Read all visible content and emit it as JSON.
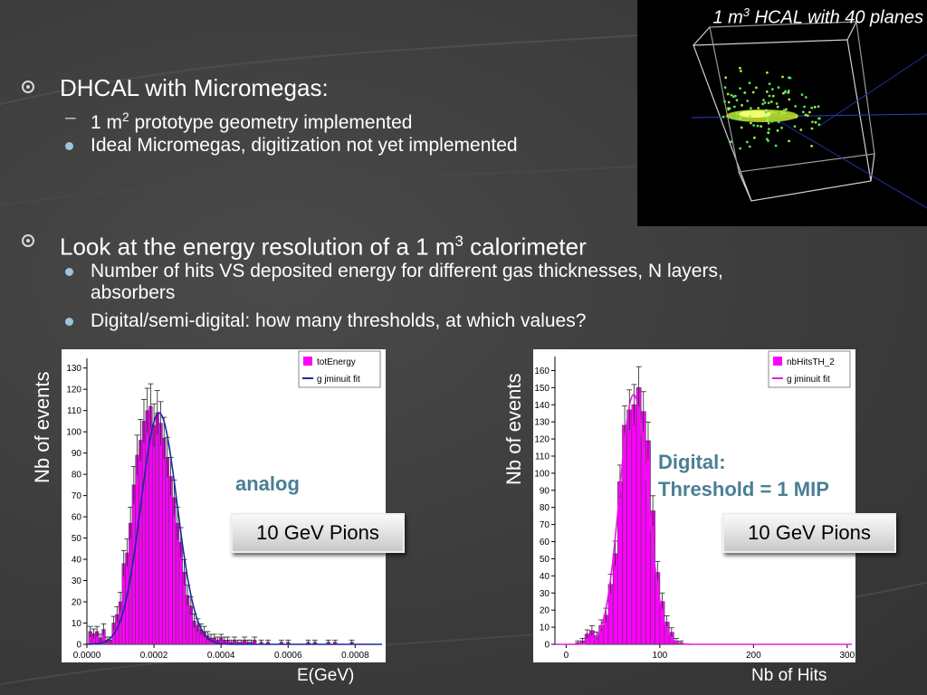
{
  "bullets": [
    {
      "text": "DHCAL with Micromegas:",
      "subs": [
        {
          "marker": "dash",
          "text_pre": "1 m",
          "sup": "2",
          "text_post": " prototype geometry implemented"
        },
        {
          "marker": "dot",
          "text": "Ideal Micromegas, digitization not yet implemented"
        }
      ]
    },
    {
      "text_pre": "Look at the energy resolution of a 1 m",
      "sup": "3",
      "text_post": " calorimeter",
      "subs": [
        {
          "marker": "dot",
          "line1": "Number of hits VS deposited energy for different gas thicknesses, N layers,",
          "line2": "absorbers"
        },
        {
          "marker": "dot",
          "text": "Digital/semi-digital: how many thresholds, at which values?"
        }
      ]
    }
  ],
  "hcal_image": {
    "title_pre": "1 m",
    "title_sup": "3",
    "title_post": " HCAL with 40 planes"
  },
  "colors": {
    "histogram": "#ff00ff",
    "fit_analog": "#1a2a9c",
    "fit_digital": "#e020e0",
    "callout": "#4a7f94",
    "background": "#3c3c3c"
  },
  "callouts": {
    "analog": "analog",
    "digital_line1": "Digital:",
    "digital_line2": "Threshold = 1 MIP",
    "pions_left": "10 GeV Pions",
    "pions_right": "10 GeV Pions"
  },
  "chart_data": [
    {
      "type": "bar",
      "ylabel": "Nb of events",
      "xlabel": "E(GeV)",
      "xlim": [
        0.0,
        0.00088
      ],
      "ylim": [
        0,
        132
      ],
      "xticks": [
        0.0,
        0.0002,
        0.0004,
        0.0006,
        0.0008
      ],
      "xtick_labels": [
        "0.0000",
        "0.0002",
        "0.0004",
        "0.0006",
        "0.0008"
      ],
      "yticks": [
        0,
        10,
        20,
        30,
        40,
        50,
        60,
        70,
        80,
        90,
        100,
        110,
        120,
        130
      ],
      "bin_width": 1e-05,
      "x": [
        1e-05,
        2e-05,
        3e-05,
        4e-05,
        5e-05,
        6e-05,
        7e-05,
        8e-05,
        9e-05,
        0.0001,
        0.00011,
        0.00012,
        0.00013,
        0.00014,
        0.00015,
        0.00016,
        0.00017,
        0.00018,
        0.00019,
        0.0002,
        0.00021,
        0.00022,
        0.00023,
        0.00024,
        0.00025,
        0.00026,
        0.00027,
        0.00028,
        0.00029,
        0.0003,
        0.00031,
        0.00032,
        0.00033,
        0.00034,
        0.00035,
        0.00036,
        0.00037,
        0.00038,
        0.00039,
        0.0004,
        0.00041,
        0.00042,
        0.00043,
        0.00044,
        0.00045,
        0.00046,
        0.00047,
        0.00048,
        0.00049,
        0.0005,
        0.00052,
        0.00054,
        0.00058,
        0.0006,
        0.00066,
        0.00068,
        0.00072,
        0.00074,
        0.00079
      ],
      "series": [
        {
          "name": "totEnergy",
          "values": [
            6,
            5,
            6,
            3,
            7,
            2,
            2,
            10,
            14,
            20,
            38,
            43,
            57,
            75,
            89,
            96,
            105,
            110,
            112,
            103,
            109,
            104,
            97,
            88,
            79,
            69,
            57,
            48,
            34,
            23,
            18,
            11,
            9,
            7,
            6,
            4,
            3,
            3,
            2,
            3,
            2,
            2,
            1,
            2,
            1,
            1,
            2,
            1,
            1,
            2,
            1,
            1,
            1,
            1,
            1,
            1,
            1,
            1,
            1
          ]
        }
      ],
      "fit": {
        "name": "g jminuit fit",
        "peak_x": 0.000215,
        "amplitude": 109,
        "sigma": 5.4e-05
      }
    },
    {
      "type": "bar",
      "ylabel": "Nb of events",
      "xlabel": "Nb of Hits",
      "xlim": [
        -12,
        305
      ],
      "ylim": [
        0,
        165
      ],
      "xticks": [
        0,
        100,
        200,
        300
      ],
      "xtick_labels": [
        "0",
        "100",
        "200",
        "300"
      ],
      "yticks": [
        0,
        10,
        20,
        30,
        40,
        50,
        60,
        70,
        80,
        90,
        100,
        110,
        120,
        130,
        140,
        150,
        160
      ],
      "bin_width": 5,
      "x": [
        12.5,
        17.5,
        22.5,
        27.5,
        32.5,
        37.5,
        42.5,
        47.5,
        52.5,
        57.5,
        62.5,
        67.5,
        72.5,
        77.5,
        82.5,
        87.5,
        92.5,
        97.5,
        102.5,
        107.5,
        112.5,
        117.5,
        122.5
      ],
      "series": [
        {
          "name": "nbHitsTH_2",
          "values": [
            1,
            2,
            6,
            8,
            5,
            11,
            17,
            35,
            53,
            95,
            128,
            137,
            140,
            150,
            136,
            119,
            78,
            42,
            25,
            13,
            7,
            2,
            1
          ]
        }
      ],
      "fit": {
        "name": "g jminuit fit",
        "peak_x": 72,
        "amplitude": 146,
        "sigma": 15
      }
    }
  ]
}
